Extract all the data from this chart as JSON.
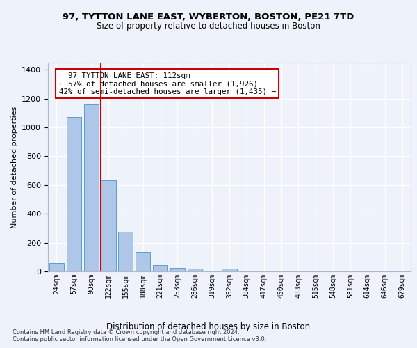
{
  "title1": "97, TYTTON LANE EAST, WYBERTON, BOSTON, PE21 7TD",
  "title2": "Size of property relative to detached houses in Boston",
  "xlabel": "Distribution of detached houses by size in Boston",
  "ylabel": "Number of detached properties",
  "bar_labels": [
    "24sqm",
    "57sqm",
    "90sqm",
    "122sqm",
    "155sqm",
    "188sqm",
    "221sqm",
    "253sqm",
    "286sqm",
    "319sqm",
    "352sqm",
    "384sqm",
    "417sqm",
    "450sqm",
    "483sqm",
    "515sqm",
    "548sqm",
    "581sqm",
    "614sqm",
    "646sqm",
    "679sqm"
  ],
  "bar_values": [
    60,
    1075,
    1160,
    635,
    275,
    135,
    42,
    22,
    18,
    0,
    18,
    0,
    0,
    0,
    0,
    0,
    0,
    0,
    0,
    0,
    0
  ],
  "bar_color": "#aec6e8",
  "bar_edge_color": "#5a9fd4",
  "vline_x": 2.55,
  "vline_color": "#cc0000",
  "annotation_text": "  97 TYTTON LANE EAST: 112sqm\n← 57% of detached houses are smaller (1,926)\n42% of semi-detached houses are larger (1,435) →",
  "annotation_box_color": "#ffffff",
  "annotation_box_edge_color": "#cc0000",
  "ylim": [
    0,
    1450
  ],
  "yticks": [
    0,
    200,
    400,
    600,
    800,
    1000,
    1200,
    1400
  ],
  "footer1": "Contains HM Land Registry data © Crown copyright and database right 2024.",
  "footer2": "Contains public sector information licensed under the Open Government Licence v3.0.",
  "bg_color": "#eef2fb",
  "plot_bg_color": "#eef2fb",
  "grid_color": "#ffffff"
}
